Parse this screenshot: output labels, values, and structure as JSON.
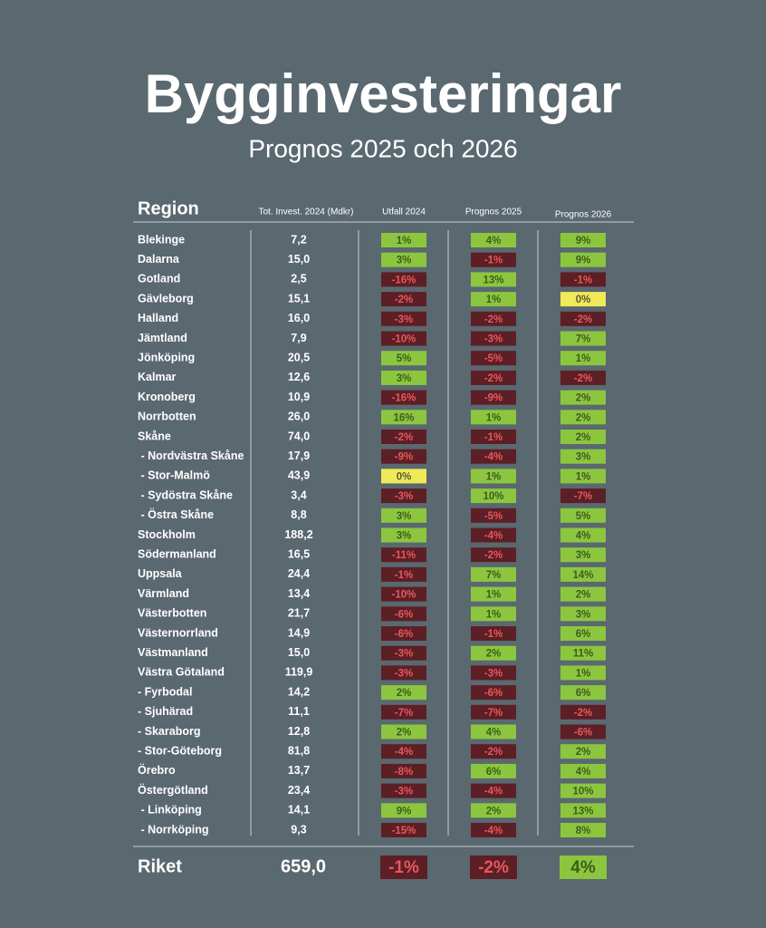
{
  "header": {
    "title": "Bygginvesteringar",
    "subtitle": "Prognos 2025 och 2026"
  },
  "table": {
    "columns": [
      "Region",
      "Tot. Invest. 2024 (Mdkr)",
      "Utfall 2024",
      "Prognos 2025",
      "Prognos 2026"
    ],
    "rows": [
      [
        "Blekinge",
        "7,2",
        "1%",
        "4%",
        "9%"
      ],
      [
        "Dalarna",
        "15,0",
        "3%",
        "-1%",
        "9%"
      ],
      [
        "Gotland",
        "2,5",
        "-16%",
        "13%",
        "-1%"
      ],
      [
        "Gävleborg",
        "15,1",
        "-2%",
        "1%",
        "0%"
      ],
      [
        "Halland",
        "16,0",
        "-3%",
        "-2%",
        "-2%"
      ],
      [
        "Jämtland",
        "7,9",
        "-10%",
        "-3%",
        "7%"
      ],
      [
        "Jönköping",
        "20,5",
        "5%",
        "-5%",
        "1%"
      ],
      [
        "Kalmar",
        "12,6",
        "3%",
        "-2%",
        "-2%"
      ],
      [
        "Kronoberg",
        "10,9",
        "-16%",
        "-9%",
        "2%"
      ],
      [
        "Norrbotten",
        "26,0",
        "16%",
        "1%",
        "2%"
      ],
      [
        "Skåne",
        "74,0",
        "-2%",
        "-1%",
        "2%"
      ],
      [
        " - Nordvästra Skåne",
        "17,9",
        "-9%",
        "-4%",
        "3%"
      ],
      [
        " - Stor-Malmö",
        "43,9",
        "0%",
        "1%",
        "1%"
      ],
      [
        " - Sydöstra Skåne",
        "3,4",
        "-3%",
        "10%",
        "-7%"
      ],
      [
        " - Östra Skåne",
        "8,8",
        "3%",
        "-5%",
        "5%"
      ],
      [
        "Stockholm",
        "188,2",
        "3%",
        "-4%",
        "4%"
      ],
      [
        "Södermanland",
        "16,5",
        "-11%",
        "-2%",
        "3%"
      ],
      [
        "Uppsala",
        "24,4",
        "-1%",
        "7%",
        "14%"
      ],
      [
        "Värmland",
        "13,4",
        "-10%",
        "1%",
        "2%"
      ],
      [
        "Västerbotten",
        "21,7",
        "-6%",
        "1%",
        "3%"
      ],
      [
        "Västernorrland",
        "14,9",
        "-6%",
        "-1%",
        "6%"
      ],
      [
        "Västmanland",
        "15,0",
        "-3%",
        "2%",
        "11%"
      ],
      [
        "Västra Götaland",
        "119,9",
        "-3%",
        "-3%",
        "1%"
      ],
      [
        "- Fyrbodal",
        "14,2",
        "2%",
        "-6%",
        "6%"
      ],
      [
        "- Sjuhärad",
        "11,1",
        "-7%",
        "-7%",
        "-2%"
      ],
      [
        "- Skaraborg",
        "12,8",
        "2%",
        "4%",
        "-6%"
      ],
      [
        "- Stor-Göteborg",
        "81,8",
        "-4%",
        "-2%",
        "2%"
      ],
      [
        "Örebro",
        "13,7",
        "-8%",
        "6%",
        "4%"
      ],
      [
        "Östergötland",
        "23,4",
        "-3%",
        "-4%",
        "10%"
      ],
      [
        " - Linköping",
        "14,1",
        "9%",
        "2%",
        "13%"
      ],
      [
        " - Norrköping",
        "9,3",
        "-15%",
        "-4%",
        "8%"
      ]
    ],
    "total": [
      "Riket",
      "659,0",
      "-1%",
      "-2%",
      "4%"
    ]
  }
}
